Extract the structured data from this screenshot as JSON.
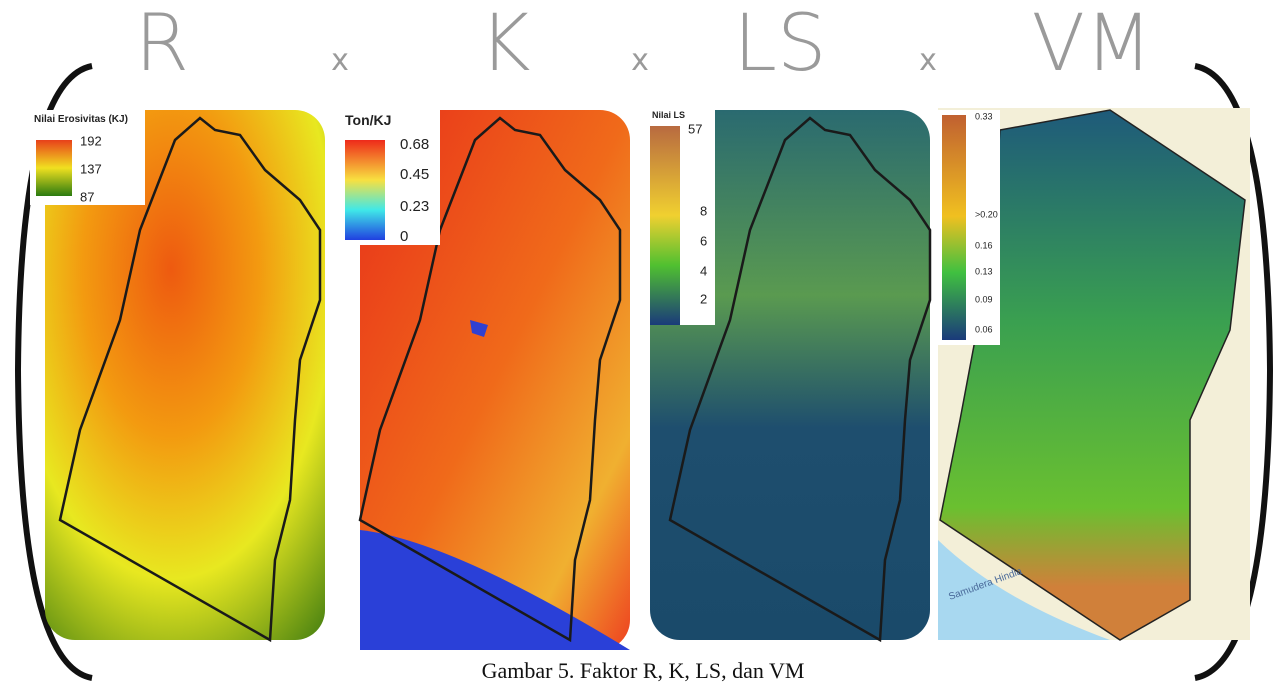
{
  "header": {
    "factors": [
      "R",
      "K",
      "LS",
      "VM"
    ],
    "operators": [
      "x",
      "x",
      "x"
    ]
  },
  "panels": [
    {
      "legend_title": "Nilai Erosivitas (KJ)",
      "legend_labels": [
        "192",
        "137",
        "87"
      ]
    },
    {
      "legend_title": "Ton/KJ",
      "legend_labels": [
        "0.68",
        "0.45",
        "0.23",
        "0"
      ]
    },
    {
      "legend_title": "Nilai LS",
      "legend_labels": [
        "57",
        "8",
        "6",
        "4",
        "2"
      ]
    },
    {
      "legend_labels": [
        "0.33",
        ">0.20",
        "0.16",
        "0.13",
        "0.09",
        "0.06"
      ],
      "sea_label": "Samudera Hindia"
    }
  ],
  "caption": "Gambar 5. Faktor R, K, LS, dan VM"
}
